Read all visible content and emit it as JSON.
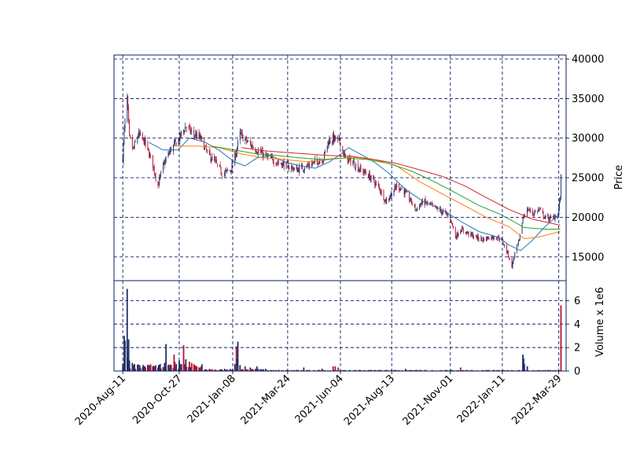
{
  "colors": {
    "frame": "#0b1f66",
    "up": "#1f2f6b",
    "down": "#b3142f",
    "ma1": "#1f77b4",
    "ma2": "#ff7f0e",
    "ma3": "#2ca02c",
    "ma4": "#d62728"
  },
  "chart_data": [
    {
      "type": "candlestick",
      "title": "",
      "ylabel": "Price",
      "ylim": [
        12000,
        40500
      ],
      "yticks": [
        15000,
        20000,
        25000,
        30000,
        35000,
        40000
      ],
      "ytick_labels": [
        "15000",
        "20000",
        "25000",
        "30000",
        "35000",
        "40000"
      ],
      "xlim": [
        "2020-07-30",
        "2022-04-08"
      ],
      "xticks": [
        "2020-08-11",
        "2020-10-27",
        "2021-01-08",
        "2021-03-24",
        "2021-06-04",
        "2021-08-13",
        "2021-11-01",
        "2022-01-11",
        "2022-03-29"
      ],
      "xtick_labels": [
        "2020-Aug-11",
        "2020-Oct-27",
        "2021-Jan-08",
        "2021-Mar-24",
        "2021-Jun-04",
        "2021-Aug-13",
        "2021-Nov-01",
        "2022-Jan-11",
        "2022-Mar-29"
      ],
      "grid": true,
      "close_anchors": [
        [
          "2020-08-11",
          27500
        ],
        [
          "2020-08-13",
          31000
        ],
        [
          "2020-08-17",
          35000
        ],
        [
          "2020-08-20",
          30000
        ],
        [
          "2020-08-25",
          28500
        ],
        [
          "2020-09-01",
          30500
        ],
        [
          "2020-09-10",
          29500
        ],
        [
          "2020-09-20",
          27000
        ],
        [
          "2020-09-28",
          24000
        ],
        [
          "2020-10-05",
          26500
        ],
        [
          "2020-10-15",
          28500
        ],
        [
          "2020-10-27",
          30000
        ],
        [
          "2020-11-05",
          31500
        ],
        [
          "2020-11-15",
          30500
        ],
        [
          "2020-11-25",
          30000
        ],
        [
          "2020-12-05",
          28000
        ],
        [
          "2020-12-15",
          27000
        ],
        [
          "2020-12-25",
          25500
        ],
        [
          "2021-01-05",
          26000
        ],
        [
          "2021-01-12",
          28000
        ],
        [
          "2021-01-18",
          30500
        ],
        [
          "2021-01-28",
          29500
        ],
        [
          "2021-02-10",
          28500
        ],
        [
          "2021-02-25",
          27500
        ],
        [
          "2021-03-10",
          27000
        ],
        [
          "2021-03-24",
          26500
        ],
        [
          "2021-04-05",
          26000
        ],
        [
          "2021-04-20",
          26500
        ],
        [
          "2021-05-01",
          27000
        ],
        [
          "2021-05-12",
          27500
        ],
        [
          "2021-05-18",
          29500
        ],
        [
          "2021-05-25",
          30000
        ],
        [
          "2021-06-04",
          29500
        ],
        [
          "2021-06-10",
          27500
        ],
        [
          "2021-06-20",
          27000
        ],
        [
          "2021-07-01",
          26000
        ],
        [
          "2021-07-10",
          25500
        ],
        [
          "2021-07-20",
          24500
        ],
        [
          "2021-07-28",
          23500
        ],
        [
          "2021-08-05",
          22000
        ],
        [
          "2021-08-13",
          23000
        ],
        [
          "2021-08-20",
          24000
        ],
        [
          "2021-08-28",
          23500
        ],
        [
          "2021-09-05",
          22500
        ],
        [
          "2021-09-15",
          21000
        ],
        [
          "2021-09-25",
          22000
        ],
        [
          "2021-10-05",
          21500
        ],
        [
          "2021-10-15",
          21000
        ],
        [
          "2021-10-25",
          20500
        ],
        [
          "2021-11-01",
          20000
        ],
        [
          "2021-11-08",
          17500
        ],
        [
          "2021-11-15",
          18500
        ],
        [
          "2021-11-25",
          18000
        ],
        [
          "2021-12-05",
          17500
        ],
        [
          "2021-12-15",
          17200
        ],
        [
          "2021-12-25",
          17500
        ],
        [
          "2022-01-05",
          17500
        ],
        [
          "2022-01-11",
          17000
        ],
        [
          "2022-01-18",
          15500
        ],
        [
          "2022-01-24",
          13800
        ],
        [
          "2022-01-28",
          15500
        ],
        [
          "2022-02-03",
          17000
        ],
        [
          "2022-02-08",
          20000
        ],
        [
          "2022-02-15",
          21000
        ],
        [
          "2022-02-22",
          20500
        ],
        [
          "2022-03-02",
          21000
        ],
        [
          "2022-03-10",
          20000
        ],
        [
          "2022-03-20",
          19800
        ],
        [
          "2022-03-28",
          20500
        ],
        [
          "2022-03-31",
          22500
        ],
        [
          "2022-04-01",
          25000
        ]
      ],
      "moving_averages": [
        {
          "color_key": "ma1",
          "points": [
            [
              "2020-09-15",
              29500
            ],
            [
              "2020-10-05",
              28500
            ],
            [
              "2020-10-25",
              28500
            ],
            [
              "2020-11-10",
              30000
            ],
            [
              "2020-12-01",
              29500
            ],
            [
              "2020-12-20",
              28500
            ],
            [
              "2021-01-10",
              27000
            ],
            [
              "2021-01-25",
              26500
            ],
            [
              "2021-02-10",
              27500
            ],
            [
              "2021-03-01",
              27800
            ],
            [
              "2021-03-20",
              27000
            ],
            [
              "2021-04-10",
              26500
            ],
            [
              "2021-05-01",
              26200
            ],
            [
              "2021-05-20",
              27000
            ],
            [
              "2021-06-05",
              28000
            ],
            [
              "2021-06-15",
              28800
            ],
            [
              "2021-07-01",
              28000
            ],
            [
              "2021-07-20",
              27000
            ],
            [
              "2021-08-10",
              25500
            ],
            [
              "2021-09-01",
              23500
            ],
            [
              "2021-09-25",
              22000
            ],
            [
              "2021-10-20",
              21000
            ],
            [
              "2021-11-15",
              19500
            ],
            [
              "2021-12-10",
              18200
            ],
            [
              "2022-01-05",
              17500
            ],
            [
              "2022-01-20",
              16500
            ],
            [
              "2022-02-05",
              15800
            ],
            [
              "2022-02-20",
              17000
            ],
            [
              "2022-03-10",
              18800
            ],
            [
              "2022-03-31",
              20500
            ]
          ]
        },
        {
          "color_key": "ma2",
          "points": [
            [
              "2020-10-20",
              29000
            ],
            [
              "2020-11-20",
              29000
            ],
            [
              "2020-12-20",
              28800
            ],
            [
              "2021-01-20",
              28000
            ],
            [
              "2021-02-20",
              27500
            ],
            [
              "2021-03-20",
              27300
            ],
            [
              "2021-04-20",
              27000
            ],
            [
              "2021-05-20",
              27300
            ],
            [
              "2021-06-20",
              27600
            ],
            [
              "2021-07-20",
              27300
            ],
            [
              "2021-08-20",
              26500
            ],
            [
              "2021-09-20",
              24500
            ],
            [
              "2021-10-20",
              23000
            ],
            [
              "2021-11-20",
              21500
            ],
            [
              "2021-12-20",
              20000
            ],
            [
              "2022-01-20",
              18800
            ],
            [
              "2022-02-10",
              17300
            ],
            [
              "2022-03-01",
              17500
            ],
            [
              "2022-03-31",
              18200
            ]
          ]
        },
        {
          "color_key": "ma3",
          "points": [
            [
              "2020-12-10",
              29000
            ],
            [
              "2021-01-10",
              28500
            ],
            [
              "2021-02-10",
              28000
            ],
            [
              "2021-03-10",
              27800
            ],
            [
              "2021-04-10",
              27500
            ],
            [
              "2021-05-10",
              27300
            ],
            [
              "2021-06-10",
              27500
            ],
            [
              "2021-07-10",
              27300
            ],
            [
              "2021-08-10",
              26800
            ],
            [
              "2021-09-10",
              25800
            ],
            [
              "2021-10-10",
              24500
            ],
            [
              "2021-11-10",
              23000
            ],
            [
              "2021-12-10",
              21500
            ],
            [
              "2022-01-10",
              20300
            ],
            [
              "2022-02-10",
              18700
            ],
            [
              "2022-03-10",
              18500
            ],
            [
              "2022-03-31",
              18500
            ]
          ]
        },
        {
          "color_key": "ma4",
          "points": [
            [
              "2021-01-20",
              28800
            ],
            [
              "2021-02-20",
              28400
            ],
            [
              "2021-03-20",
              28200
            ],
            [
              "2021-04-20",
              28000
            ],
            [
              "2021-05-20",
              27800
            ],
            [
              "2021-06-20",
              27700
            ],
            [
              "2021-07-20",
              27300
            ],
            [
              "2021-08-20",
              26800
            ],
            [
              "2021-09-20",
              26000
            ],
            [
              "2021-10-20",
              25200
            ],
            [
              "2021-11-20",
              24000
            ],
            [
              "2021-12-20",
              22500
            ],
            [
              "2022-01-20",
              21000
            ],
            [
              "2022-02-20",
              19800
            ],
            [
              "2022-03-31",
              19000
            ]
          ]
        }
      ]
    },
    {
      "type": "bar",
      "title": "",
      "ylabel": "Volume x 1e6",
      "ylim": [
        0,
        7.7
      ],
      "yticks": [
        0,
        2,
        4,
        6
      ],
      "ytick_labels": [
        "0",
        "2",
        "4",
        "6"
      ],
      "grid": true,
      "spikes": [
        [
          "2020-08-11",
          0.6
        ],
        [
          "2020-08-13",
          3.0
        ],
        [
          "2020-08-14",
          2.6
        ],
        [
          "2020-08-17",
          7.0
        ],
        [
          "2020-08-18",
          1.2
        ],
        [
          "2020-08-19",
          2.7
        ],
        [
          "2020-08-20",
          0.9
        ],
        [
          "2020-08-24",
          0.7
        ],
        [
          "2020-08-27",
          0.6
        ],
        [
          "2020-09-03",
          0.5
        ],
        [
          "2020-09-10",
          0.4
        ],
        [
          "2020-09-25",
          0.5
        ],
        [
          "2020-10-01",
          0.6
        ],
        [
          "2020-10-07",
          0.7
        ],
        [
          "2020-10-09",
          2.3
        ],
        [
          "2020-10-12",
          0.5
        ],
        [
          "2020-10-20",
          1.4
        ],
        [
          "2020-10-21",
          0.8
        ],
        [
          "2020-10-27",
          0.9
        ],
        [
          "2020-11-02",
          2.2
        ],
        [
          "2020-11-05",
          1.0
        ],
        [
          "2020-11-10",
          0.8
        ],
        [
          "2020-11-13",
          0.7
        ],
        [
          "2020-11-20",
          0.4
        ],
        [
          "2021-01-11",
          0.6
        ],
        [
          "2021-01-13",
          2.1
        ],
        [
          "2021-01-14",
          1.0
        ],
        [
          "2021-01-15",
          2.5
        ],
        [
          "2021-01-18",
          0.5
        ],
        [
          "2021-01-25",
          0.4
        ],
        [
          "2021-02-01",
          0.3
        ],
        [
          "2021-02-10",
          0.4
        ],
        [
          "2021-04-15",
          0.3
        ],
        [
          "2021-05-10",
          0.2
        ],
        [
          "2021-05-25",
          0.4
        ],
        [
          "2021-05-28",
          0.4
        ],
        [
          "2021-06-01",
          0.3
        ],
        [
          "2021-09-01",
          0.2
        ],
        [
          "2021-11-15",
          0.3
        ],
        [
          "2022-02-08",
          1.4
        ],
        [
          "2022-02-09",
          1.1
        ],
        [
          "2022-02-10",
          0.6
        ],
        [
          "2022-02-14",
          0.4
        ],
        [
          "2022-04-01",
          5.6
        ]
      ]
    }
  ]
}
